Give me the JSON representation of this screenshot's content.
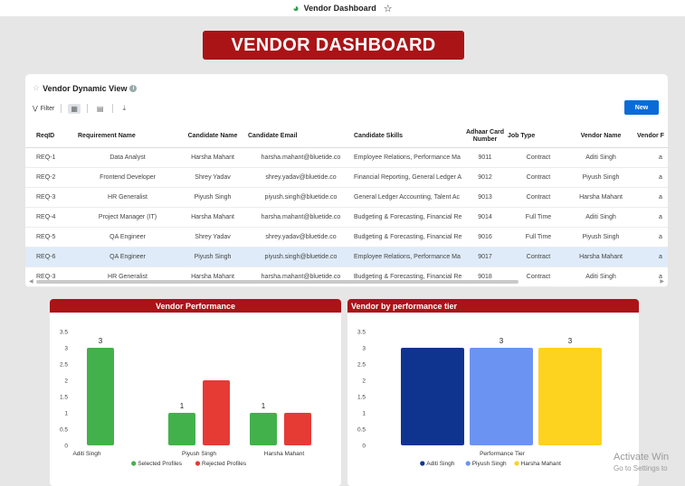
{
  "window": {
    "title": "Vendor Dashboard"
  },
  "banner": {
    "title": "VENDOR DASHBOARD"
  },
  "table_card": {
    "title": "Vendor Dynamic View",
    "filter_label": "Filter",
    "new_label": "New",
    "columns": [
      "ReqID",
      "Requirement Name",
      "Candidate Name",
      "Candidate Email",
      "Candidate Skills",
      "Adhaar Card Number",
      "Job Type",
      "Vendor Name",
      "Vendor F"
    ],
    "rows": [
      [
        "REQ-1",
        "Data Analyst",
        "Harsha Mahant",
        "harsha.mahant@bluetide.co",
        "Employee Relations, Performance Ma",
        "9011",
        "Contract",
        "Aditi Singh",
        "a"
      ],
      [
        "REQ-2",
        "Frontend Developer",
        "Shrey Yadav",
        "shrey.yadav@bluetide.co",
        "Financial Reporting, General Ledger A",
        "9012",
        "Contract",
        "Piyush Singh",
        "a"
      ],
      [
        "REQ-3",
        "HR Generalist",
        "Piyush Singh",
        "piyush.singh@bluetide.co",
        "General Ledger Accounting, Talent Ac",
        "9013",
        "Contract",
        "Harsha Mahant",
        "a"
      ],
      [
        "REQ-4",
        "Project Manager (IT)",
        "Harsha Mahant",
        "harsha.mahant@bluetide.co",
        "Budgeting & Forecasting, Financial Re",
        "9014",
        "Full Time",
        "Aditi Singh",
        "a"
      ],
      [
        "REQ-5",
        "QA Engineer",
        "Shrey Yadav",
        "shrey.yadav@bluetide.co",
        "Budgeting & Forecasting, Financial Re",
        "9016",
        "Full Time",
        "Piyush Singh",
        "a"
      ],
      [
        "REQ-6",
        "QA Engineer",
        "Piyush Singh",
        "piyush.singh@bluetide.co",
        "Employee Relations, Performance Ma",
        "9017",
        "Contract",
        "Harsha Mahant",
        "a"
      ],
      [
        "REQ-3",
        "HR Generalist",
        "Harsha Mahant",
        "harsha.mahant@bluetide.co",
        "Budgeting & Forecasting, Financial Re",
        "9018",
        "Contract",
        "Aditi Singh",
        "a"
      ]
    ],
    "selected_row": 5
  },
  "chart_data": [
    {
      "type": "bar",
      "title": "Vendor Performance",
      "categories": [
        "Aditi Singh",
        "Piyush Singh",
        "Harsha Mahant"
      ],
      "series": [
        {
          "name": "Selected Profiles",
          "color": "#43b14b",
          "values": [
            3,
            1,
            1
          ],
          "labels": [
            "3",
            "1",
            "1"
          ]
        },
        {
          "name": "Rejected Profiles",
          "color": "#e63a35",
          "values": [
            0,
            2,
            1
          ],
          "labels": [
            "",
            "",
            ""
          ]
        }
      ],
      "yticks": [
        "0",
        "0.5",
        "1",
        "1.5",
        "2",
        "2.5",
        "3",
        "3.5"
      ],
      "ylim": [
        0,
        3.5
      ],
      "xlabel": "",
      "ylabel": "",
      "legend": "bottom"
    },
    {
      "type": "bar",
      "title": "Vendor by performance tier",
      "categories": [
        "Performance Tier"
      ],
      "series": [
        {
          "name": "Aditi Singh",
          "color": "#0f3490",
          "values": [
            3
          ],
          "labels": [
            ""
          ]
        },
        {
          "name": "Piyush Singh",
          "color": "#6b93f2",
          "values": [
            3
          ],
          "labels": [
            "3"
          ]
        },
        {
          "name": "Harsha Mahant",
          "color": "#fdd31f",
          "values": [
            3
          ],
          "labels": [
            "3"
          ]
        }
      ],
      "yticks": [
        "0",
        "0.5",
        "1",
        "1.5",
        "2",
        "2.5",
        "3",
        "3.5"
      ],
      "ylim": [
        0,
        3.5
      ],
      "xlabel": "Performance Tier",
      "ylabel": "",
      "legend": "bottom"
    }
  ],
  "watermark": {
    "line1": "Activate Win",
    "line2": "Go to Settings to"
  }
}
